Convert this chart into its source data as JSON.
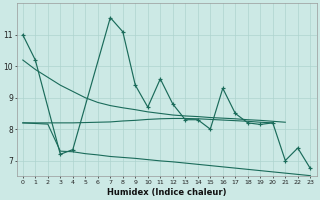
{
  "xlabel": "Humidex (Indice chaleur)",
  "main_x": [
    0,
    1,
    3,
    4,
    7,
    8,
    9,
    10,
    11,
    12,
    13,
    14,
    15,
    16,
    17,
    18,
    19,
    20,
    21,
    22,
    23
  ],
  "main_y": [
    11.0,
    10.2,
    7.2,
    7.35,
    11.55,
    11.1,
    9.4,
    8.7,
    9.6,
    8.8,
    8.3,
    8.3,
    8.0,
    9.3,
    8.5,
    8.2,
    8.15,
    8.2,
    7.0,
    7.4,
    6.75
  ],
  "upper_x": [
    0,
    1,
    2,
    3,
    4,
    5,
    6,
    7,
    8,
    9,
    10,
    11,
    12,
    13,
    14,
    15,
    16,
    17,
    18,
    19,
    20,
    21
  ],
  "upper_y": [
    10.2,
    9.9,
    9.65,
    9.4,
    9.2,
    9.0,
    8.85,
    8.75,
    8.68,
    8.62,
    8.55,
    8.5,
    8.45,
    8.42,
    8.4,
    8.37,
    8.35,
    8.33,
    8.3,
    8.28,
    8.25,
    8.22
  ],
  "lower_x": [
    0,
    1,
    2,
    3,
    4,
    5,
    6,
    7,
    8,
    9,
    10,
    11,
    12,
    13,
    14,
    15,
    16,
    17,
    18,
    19,
    20,
    21,
    22,
    23
  ],
  "lower_y": [
    8.2,
    8.18,
    8.16,
    7.3,
    7.28,
    7.22,
    7.18,
    7.13,
    7.1,
    7.07,
    7.03,
    6.99,
    6.96,
    6.92,
    6.88,
    6.84,
    6.8,
    6.76,
    6.72,
    6.68,
    6.64,
    6.6,
    6.56,
    6.52
  ],
  "flat_x": [
    0,
    1,
    2,
    3,
    4,
    5,
    6,
    7,
    8,
    9,
    10,
    11,
    12,
    13,
    14,
    15,
    16,
    17,
    18,
    19,
    20
  ],
  "flat_y": [
    8.2,
    8.2,
    8.2,
    8.2,
    8.2,
    8.21,
    8.22,
    8.23,
    8.26,
    8.28,
    8.31,
    8.33,
    8.34,
    8.34,
    8.33,
    8.31,
    8.29,
    8.27,
    8.25,
    8.22,
    8.2
  ],
  "ylim": [
    6.5,
    12.0
  ],
  "yticks": [
    7,
    8,
    9,
    10,
    11
  ],
  "xticks": [
    0,
    1,
    2,
    3,
    4,
    5,
    6,
    7,
    8,
    9,
    10,
    11,
    12,
    13,
    14,
    15,
    16,
    17,
    18,
    19,
    20,
    21,
    22,
    23
  ],
  "line_color": "#1a6b5a",
  "bg_color": "#cce9e5",
  "grid_color": "#aed4cf"
}
